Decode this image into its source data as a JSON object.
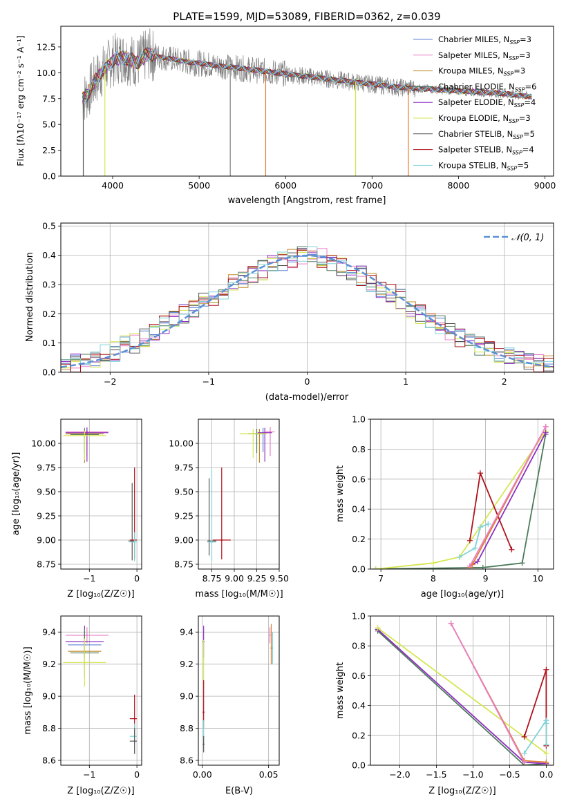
{
  "colors": {
    "chabrier_miles": "#5b7fd6",
    "salpeter_miles": "#e87fc8",
    "kroupa_miles": "#c08a2a",
    "chabrier_elodie": "#4c7a5a",
    "salpeter_elodie": "#8e2fbf",
    "kroupa_elodie": "#d4e64f",
    "chabrier_stelib": "#555555",
    "salpeter_stelib": "#b0121b",
    "kroupa_stelib": "#7fd3d8",
    "data_gray": "#808080",
    "normal_curve": "#5b8fd6",
    "orange_line": "#e07b30"
  },
  "chart_data": [
    {
      "type": "line",
      "id": "spectrum",
      "title": "PLATE=1599, MJD=53089, FIBERID=0362, z=0.039",
      "xlabel": "wavelength [Angstrom, rest frame]",
      "ylabel": "Flux [fλ10⁻¹⁷ erg cm⁻² s⁻¹ A⁻¹]",
      "xlim": [
        3400,
        9100
      ],
      "ylim": [
        0,
        14.5
      ],
      "xticks": [
        4000,
        5000,
        6000,
        7000,
        8000,
        9000
      ],
      "yticks": [
        0.0,
        2.5,
        5.0,
        7.5,
        10.0,
        12.5
      ],
      "grid": false,
      "legend_position": "top-right",
      "legend": [
        "Chabrier MILES, N_SSP=3",
        "Salpeter MILES, N_SSP=3",
        "Kroupa MILES, N_SSP=3",
        "Chabrier ELODIE, N_SSP=6",
        "Salpeter ELODIE, N_SSP=4",
        "Kroupa ELODIE, N_SSP=3",
        "Chabrier STELIB, N_SSP=5",
        "Salpeter STELIB, N_SSP=4",
        "Kroupa STELIB, N_SSP=5"
      ],
      "continuum": {
        "x": [
          3650,
          3700,
          3800,
          3900,
          4000,
          4100,
          4200,
          4300,
          4400,
          4500,
          4700,
          4900,
          5100,
          5300,
          5500,
          5700,
          5900,
          6100,
          6300,
          6500,
          6700,
          6900,
          7100,
          7300,
          7500,
          7700,
          7900,
          8100,
          8300,
          8500,
          8700,
          8850
        ],
        "y": [
          7.5,
          7.8,
          9.3,
          10.3,
          11.2,
          11.5,
          11.3,
          11.0,
          11.8,
          11.6,
          11.3,
          11.0,
          10.8,
          10.6,
          10.4,
          10.2,
          10.0,
          9.8,
          9.6,
          9.4,
          9.2,
          9.0,
          8.8,
          8.6,
          8.5,
          8.4,
          8.3,
          8.2,
          8.1,
          8.0,
          7.8,
          7.7
        ]
      },
      "drop_lines": [
        3660,
        3910,
        5360,
        5770,
        6810,
        7420
      ]
    },
    {
      "type": "bar",
      "id": "residuals",
      "xlabel": "(data-model)/error",
      "ylabel": "Normed distribution",
      "xlim": [
        -2.5,
        2.5
      ],
      "ylim": [
        0,
        0.51
      ],
      "xticks": [
        -2,
        -1,
        0,
        1,
        2
      ],
      "yticks": [
        0.0,
        0.1,
        0.2,
        0.3,
        0.4,
        0.5
      ],
      "grid": true,
      "legend_position": "top-right",
      "legend": [
        "𝒩(0, 1)"
      ],
      "bin_width": 0.1,
      "values": [
        0.02,
        0.03,
        0.04,
        0.05,
        0.06,
        0.07,
        0.09,
        0.1,
        0.12,
        0.14,
        0.16,
        0.18,
        0.2,
        0.22,
        0.24,
        0.26,
        0.28,
        0.3,
        0.32,
        0.34,
        0.35,
        0.37,
        0.38,
        0.39,
        0.4,
        0.4,
        0.39,
        0.38,
        0.36,
        0.35,
        0.33,
        0.31,
        0.29,
        0.27,
        0.25,
        0.22,
        0.2,
        0.18,
        0.16,
        0.14,
        0.12,
        0.1,
        0.09,
        0.07,
        0.06,
        0.05,
        0.04,
        0.04,
        0.03,
        0.03
      ]
    },
    {
      "type": "scatter",
      "id": "age_vs_z",
      "xlabel": "Z [log₁₀(Z/Z☉)]",
      "ylabel": "age  [log₁₀(age/yr)]",
      "xlim": [
        -1.6,
        0.1
      ],
      "ylim": [
        8.7,
        10.25
      ],
      "xticks": [
        -1,
        0
      ],
      "yticks": [
        8.75,
        9.0,
        9.25,
        9.5,
        9.75,
        10.0
      ],
      "grid": true,
      "points": [
        {
          "series": "chabrier_miles",
          "x": -1.1,
          "y": 10.11,
          "xerr": [
            0.35,
            0.35
          ],
          "yerr": [
            0.2,
            0.05
          ]
        },
        {
          "series": "salpeter_miles",
          "x": -1.05,
          "y": 10.12,
          "xerr": [
            0.45,
            0.45
          ],
          "yerr": [
            0.25,
            0.05
          ]
        },
        {
          "series": "kroupa_miles",
          "x": -1.1,
          "y": 10.1,
          "xerr": [
            0.4,
            0.4
          ],
          "yerr": [
            0.3,
            0.05
          ]
        },
        {
          "series": "chabrier_elodie",
          "x": -1.1,
          "y": 10.09,
          "xerr": [
            0.3,
            0.3
          ],
          "yerr": [
            0.2,
            0.05
          ]
        },
        {
          "series": "salpeter_elodie",
          "x": -1.05,
          "y": 10.11,
          "xerr": [
            0.45,
            0.45
          ],
          "yerr": [
            0.3,
            0.05
          ]
        },
        {
          "series": "kroupa_elodie",
          "x": -1.1,
          "y": 10.08,
          "xerr": [
            0.45,
            0.45
          ],
          "yerr": [
            0.25,
            0.05
          ]
        },
        {
          "series": "chabrier_stelib",
          "x": -0.1,
          "y": 8.99,
          "xerr": [
            0.08,
            0.05
          ],
          "yerr": [
            0.2,
            0.6
          ]
        },
        {
          "series": "salpeter_stelib",
          "x": -0.05,
          "y": 9.0,
          "xerr": [
            0.1,
            0.05
          ],
          "yerr": [
            0.2,
            0.75
          ]
        },
        {
          "series": "kroupa_stelib",
          "x": -0.05,
          "y": 8.98,
          "xerr": [
            0.1,
            0.05
          ],
          "yerr": [
            0.2,
            0.1
          ]
        }
      ]
    },
    {
      "type": "scatter",
      "id": "age_vs_mass",
      "xlabel": "mass [log₁₀(M/M☉)]",
      "ylabel": "",
      "xlim": [
        8.6,
        9.5
      ],
      "ylim": [
        8.7,
        10.25
      ],
      "xticks": [
        8.75,
        9.0,
        9.25,
        9.5
      ],
      "yticks": [
        8.75,
        9.0,
        9.25,
        9.5,
        9.75,
        10.0
      ],
      "grid": true,
      "points": [
        {
          "series": "chabrier_miles",
          "x": 9.32,
          "y": 10.11,
          "xerr": [
            0.05,
            0.05
          ],
          "yerr": [
            0.2,
            0.05
          ]
        },
        {
          "series": "salpeter_miles",
          "x": 9.4,
          "y": 10.12,
          "xerr": [
            0.05,
            0.05
          ],
          "yerr": [
            0.25,
            0.05
          ]
        },
        {
          "series": "kroupa_miles",
          "x": 9.28,
          "y": 10.1,
          "xerr": [
            0.05,
            0.05
          ],
          "yerr": [
            0.3,
            0.05
          ]
        },
        {
          "series": "chabrier_elodie",
          "x": 9.25,
          "y": 10.1,
          "xerr": [
            0.1,
            0.1
          ],
          "yerr": [
            0.2,
            0.05
          ]
        },
        {
          "series": "salpeter_elodie",
          "x": 9.34,
          "y": 10.11,
          "xerr": [
            0.08,
            0.08
          ],
          "yerr": [
            0.3,
            0.05
          ]
        },
        {
          "series": "kroupa_elodie",
          "x": 9.21,
          "y": 10.1,
          "xerr": [
            0.15,
            0.15
          ],
          "yerr": [
            0.25,
            0.05
          ]
        },
        {
          "series": "chabrier_stelib",
          "x": 8.72,
          "y": 8.99,
          "xerr": [
            0.02,
            0.08
          ],
          "yerr": [
            0.15,
            0.65
          ]
        },
        {
          "series": "salpeter_stelib",
          "x": 8.86,
          "y": 9.0,
          "xerr": [
            0.1,
            0.1
          ],
          "yerr": [
            0.2,
            0.75
          ]
        },
        {
          "series": "kroupa_stelib",
          "x": 8.75,
          "y": 8.98,
          "xerr": [
            0.05,
            0.05
          ],
          "yerr": [
            0.2,
            0.75
          ]
        }
      ]
    },
    {
      "type": "line",
      "id": "weight_vs_age",
      "xlabel": "age  [log₁₀(age/yr)]",
      "ylabel": "mass weight",
      "xlim": [
        6.8,
        10.3
      ],
      "ylim": [
        0,
        1.0
      ],
      "xticks": [
        7,
        8,
        9,
        10
      ],
      "yticks": [
        0.0,
        0.2,
        0.4,
        0.6,
        0.8,
        1.0
      ],
      "grid": true,
      "series": [
        {
          "name": "chabrier_elodie",
          "x": [
            6.9,
            8.95,
            9.7,
            10.15
          ],
          "y": [
            0.0,
            0.01,
            0.04,
            0.9
          ]
        },
        {
          "name": "kroupa_elodie",
          "x": [
            6.9,
            8.0,
            8.5,
            10.15
          ],
          "y": [
            0.0,
            0.04,
            0.08,
            0.92
          ]
        },
        {
          "name": "salpeter_elodie",
          "x": [
            8.7,
            8.85,
            10.15
          ],
          "y": [
            0.02,
            0.05,
            0.91
          ]
        },
        {
          "name": "salpeter_stelib",
          "x": [
            8.7,
            8.9,
            9.5
          ],
          "y": [
            0.19,
            0.64,
            0.13
          ]
        },
        {
          "name": "kroupa_stelib",
          "x": [
            8.5,
            8.8,
            8.9,
            9.05
          ],
          "y": [
            0.08,
            0.14,
            0.28,
            0.3
          ]
        },
        {
          "name": "orange",
          "x": [
            8.7,
            8.75,
            10.15
          ],
          "y": [
            0.01,
            0.03,
            0.95
          ]
        },
        {
          "name": "salpeter_miles",
          "x": [
            8.7,
            10.15
          ],
          "y": [
            0.02,
            0.95
          ]
        }
      ]
    },
    {
      "type": "scatter",
      "id": "mass_vs_z",
      "xlabel": "Z [log₁₀(Z/Z☉)]",
      "ylabel": "mass [log₁₀(M/M☉)]",
      "xlim": [
        -1.6,
        0.1
      ],
      "ylim": [
        8.57,
        9.5
      ],
      "xticks": [
        -1,
        0
      ],
      "yticks": [
        8.6,
        8.8,
        9.0,
        9.2,
        9.4
      ],
      "grid": true,
      "points": [
        {
          "series": "salpeter_miles",
          "x": -1.05,
          "y": 9.38,
          "xerr": [
            0.45,
            0.45
          ],
          "yerr": [
            0.05,
            0.05
          ]
        },
        {
          "series": "chabrier_miles",
          "x": -1.1,
          "y": 9.32,
          "xerr": [
            0.35,
            0.35
          ],
          "yerr": [
            0.08,
            0.08
          ]
        },
        {
          "series": "salpeter_elodie",
          "x": -1.1,
          "y": 9.34,
          "xerr": [
            0.4,
            0.4
          ],
          "yerr": [
            0.1,
            0.1
          ]
        },
        {
          "series": "kroupa_miles",
          "x": -1.1,
          "y": 9.28,
          "xerr": [
            0.35,
            0.35
          ],
          "yerr": [
            0.1,
            0.1
          ]
        },
        {
          "series": "chabrier_elodie",
          "x": -1.1,
          "y": 9.27,
          "xerr": [
            0.3,
            0.3
          ],
          "yerr": [
            0.15,
            0.15
          ]
        },
        {
          "series": "kroupa_elodie",
          "x": -1.1,
          "y": 9.21,
          "xerr": [
            0.45,
            0.45
          ],
          "yerr": [
            0.15,
            0.15
          ]
        },
        {
          "series": "salpeter_stelib",
          "x": -0.05,
          "y": 8.86,
          "xerr": [
            0.1,
            0.05
          ],
          "yerr": [
            0.1,
            0.15
          ]
        },
        {
          "series": "kroupa_stelib",
          "x": -0.05,
          "y": 8.75,
          "xerr": [
            0.1,
            0.05
          ],
          "yerr": [
            0.05,
            0.08
          ]
        },
        {
          "series": "chabrier_stelib",
          "x": -0.05,
          "y": 8.72,
          "xerr": [
            0.1,
            0.05
          ],
          "yerr": [
            0.08,
            0.08
          ]
        }
      ]
    },
    {
      "type": "scatter",
      "id": "mass_vs_ebv",
      "xlabel": "E(B-V)",
      "ylabel": "",
      "xlim": [
        -0.003,
        0.058
      ],
      "ylim": [
        8.57,
        9.5
      ],
      "xticks": [
        0.0,
        0.05
      ],
      "yticks": [
        8.6,
        8.8,
        9.0,
        9.2,
        9.4
      ],
      "grid": true,
      "points": [
        {
          "series": "salpeter_miles",
          "x": 0.051,
          "y": 9.38,
          "yerr": [
            0.05,
            0.05
          ]
        },
        {
          "series": "salpeter_elodie",
          "x": 0.001,
          "y": 9.34,
          "yerr": [
            0.1,
            0.1
          ]
        },
        {
          "series": "kroupa_elodie",
          "x": 0.001,
          "y": 9.2,
          "yerr": [
            0.15,
            0.15
          ]
        },
        {
          "series": "orange",
          "x": 0.052,
          "y": 9.3,
          "yerr": [
            0.1,
            0.15
          ]
        },
        {
          "series": "kroupa_stelib",
          "x": 0.053,
          "y": 9.3,
          "yerr": [
            0.1,
            0.1
          ]
        },
        {
          "series": "salpeter_stelib",
          "x": 0.001,
          "y": 8.9,
          "yerr": [
            0.1,
            0.2
          ]
        },
        {
          "series": "kroupa_stelib",
          "x": 0.001,
          "y": 8.75,
          "yerr": [
            0.05,
            0.1
          ]
        },
        {
          "series": "chabrier_stelib",
          "x": 0.001,
          "y": 8.7,
          "yerr": [
            0.05,
            0.05
          ]
        }
      ]
    },
    {
      "type": "line",
      "id": "weight_vs_z",
      "xlabel": "Z [log₁₀(Z/Z☉)]",
      "ylabel": "mass weight",
      "xlim": [
        -2.4,
        0.1
      ],
      "ylim": [
        0,
        1.0
      ],
      "xticks": [
        -2.0,
        -1.5,
        -1.0,
        -0.5,
        0.0
      ],
      "yticks": [
        0.0,
        0.2,
        0.4,
        0.6,
        0.8,
        1.0
      ],
      "grid": true,
      "series": [
        {
          "name": "chabrier_elodie",
          "x": [
            -2.3,
            -0.3,
            0.0
          ],
          "y": [
            0.9,
            0.0,
            0.01
          ]
        },
        {
          "name": "salpeter_elodie",
          "x": [
            -2.3,
            -0.3,
            0.0
          ],
          "y": [
            0.91,
            0.02,
            0.01
          ]
        },
        {
          "name": "kroupa_elodie",
          "x": [
            -2.3,
            0.0
          ],
          "y": [
            0.92,
            0.08
          ]
        },
        {
          "name": "orange",
          "x": [
            -1.3,
            -0.3,
            0.0
          ],
          "y": [
            0.95,
            0.03,
            0.02
          ]
        },
        {
          "name": "salpeter_stelib",
          "x": [
            -0.3,
            0.0,
            0.0
          ],
          "y": [
            0.19,
            0.64,
            0.13
          ]
        },
        {
          "name": "kroupa_stelib",
          "x": [
            -0.3,
            0.0,
            0.0,
            0.0
          ],
          "y": [
            0.08,
            0.3,
            0.28,
            0.14
          ]
        },
        {
          "name": "salpeter_miles",
          "x": [
            -1.3,
            -0.3
          ],
          "y": [
            0.95,
            0.02
          ]
        }
      ]
    }
  ]
}
